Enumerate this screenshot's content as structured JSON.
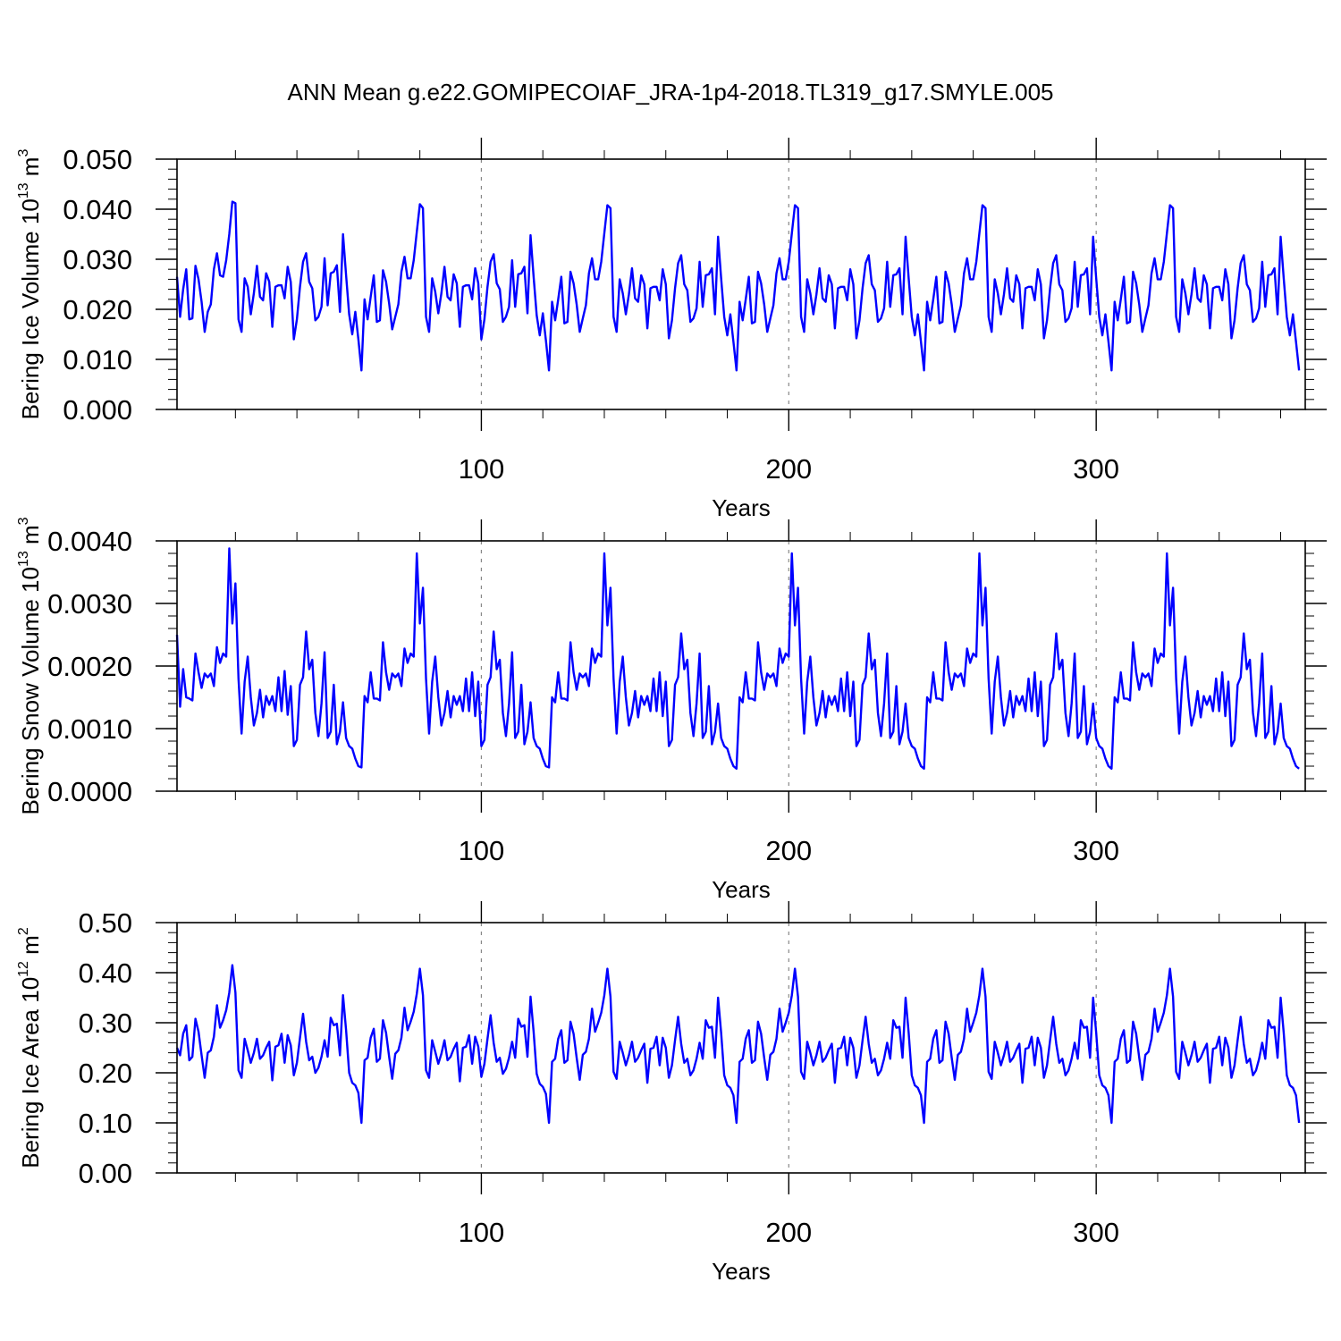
{
  "figure_title": "ANN Mean g.e22.GOMIPECOIAF_JRA-1p4-2018.TL319_g17.SMYLE.005",
  "colors": {
    "series": "#0000ff",
    "axes": "#000000",
    "grid": "#888888"
  },
  "chart_data": [
    {
      "type": "line",
      "name": "ice-volume",
      "xlabel": "Years",
      "ylabel": "Bering Ice Volume",
      "ylabel_unit_base": "10",
      "ylabel_unit_exp": "13",
      "ylabel_unit_tail": " m",
      "ylabel_unit_tail_exp": "3",
      "xlim": [
        1,
        368
      ],
      "ylim": [
        0,
        0.05
      ],
      "x_ticks": [
        100,
        200,
        300
      ],
      "x_tick_labels": [
        "100",
        "200",
        "300"
      ],
      "y_ticks": [
        0,
        0.01,
        0.02,
        0.03,
        0.04,
        0.05
      ],
      "y_tick_labels": [
        "0.000",
        "0.010",
        "0.020",
        "0.030",
        "0.040",
        "0.050"
      ],
      "grid": "dashed vertical at major x ticks",
      "x_start": 1,
      "values": [
        0.0265,
        0.0185,
        0.024,
        0.028,
        0.018,
        0.0182,
        0.0287,
        0.026,
        0.0215,
        0.0155,
        0.0195,
        0.021,
        0.028,
        0.0312,
        0.0268,
        0.0265,
        0.0298,
        0.035,
        0.0415,
        0.0412,
        0.018,
        0.0155,
        0.0262,
        0.0245,
        0.019,
        0.0232,
        0.0287,
        0.0225,
        0.0218,
        0.0272,
        0.0255,
        0.0165,
        0.0245,
        0.0248,
        0.0248,
        0.0222,
        0.0285,
        0.0255,
        0.014,
        0.018,
        0.0245,
        0.0295,
        0.0312,
        0.0255,
        0.0242,
        0.0178,
        0.0185,
        0.0205,
        0.0302,
        0.0208,
        0.0272,
        0.0275,
        0.0288,
        0.0195,
        0.035,
        0.0268,
        0.019,
        0.015,
        0.0195,
        0.014,
        0.0078,
        0.022,
        0.018,
        0.0225,
        0.0268,
        0.0175,
        0.0178,
        0.0278,
        0.0255,
        0.0212,
        0.016,
        0.0185,
        0.021,
        0.0275,
        0.0305,
        0.0262,
        0.0262,
        0.0298,
        0.0355,
        0.041,
        0.0402,
        0.0185,
        0.0155,
        0.0262,
        0.0235,
        0.0192,
        0.0232,
        0.0285,
        0.0225,
        0.0218,
        0.027,
        0.0252,
        0.0165,
        0.0245,
        0.0248,
        0.0248,
        0.022,
        0.0282,
        0.0252,
        0.014,
        0.018,
        0.0245,
        0.0295,
        0.031,
        0.0252,
        0.024,
        0.0175,
        0.0185,
        0.0205,
        0.0298,
        0.0205,
        0.027,
        0.0272,
        0.0285,
        0.0192,
        0.0348,
        0.0265,
        0.0188,
        0.0148,
        0.0192,
        0.0138,
        0.0078,
        0.0215,
        0.0178,
        0.022,
        0.0265,
        0.0172,
        0.0175,
        0.0275,
        0.0252,
        0.021,
        0.0155,
        0.0182,
        0.0208,
        0.0272,
        0.0302,
        0.026,
        0.026,
        0.0295,
        0.0352,
        0.0408,
        0.0402,
        0.0185,
        0.0155,
        0.026,
        0.0232,
        0.019,
        0.023,
        0.0282,
        0.0222,
        0.0215,
        0.0268,
        0.025,
        0.0162,
        0.0242,
        0.0245,
        0.0245,
        0.0218,
        0.028,
        0.025,
        0.0142,
        0.0178,
        0.0242,
        0.0292,
        0.0308,
        0.025,
        0.0238,
        0.0175,
        0.0182,
        0.0202,
        0.0295,
        0.0205,
        0.0268,
        0.027,
        0.0282,
        0.019,
        0.0345,
        0.0262,
        0.0185,
        0.0148,
        0.019,
        0.0135,
        0.0078,
        0.0215,
        0.0178,
        0.022,
        0.0265,
        0.0172,
        0.0175,
        0.0275,
        0.0252,
        0.021,
        0.0155,
        0.0182,
        0.0208,
        0.0272,
        0.0302,
        0.026,
        0.026,
        0.0295,
        0.0352,
        0.0408,
        0.0402,
        0.0185,
        0.0155,
        0.026,
        0.0232,
        0.019,
        0.023,
        0.0282,
        0.0222,
        0.0215,
        0.0268,
        0.025,
        0.0162,
        0.0242,
        0.0245,
        0.0245,
        0.0218,
        0.028,
        0.025,
        0.0142,
        0.0178,
        0.0242,
        0.0292,
        0.0308,
        0.025,
        0.0238,
        0.0175,
        0.0182,
        0.0202,
        0.0295,
        0.0205,
        0.0268,
        0.027,
        0.0282,
        0.019,
        0.0345,
        0.0262,
        0.0185,
        0.0148,
        0.019,
        0.0135,
        0.0078,
        0.0215,
        0.0178,
        0.022,
        0.0265,
        0.0172,
        0.0175,
        0.0275,
        0.0252,
        0.021,
        0.0155,
        0.0182,
        0.0208,
        0.0272,
        0.0302,
        0.026,
        0.026,
        0.0295,
        0.0352,
        0.0408,
        0.0402,
        0.0185,
        0.0155,
        0.026,
        0.0232,
        0.019,
        0.023,
        0.0282,
        0.0222,
        0.0215,
        0.0268,
        0.025,
        0.0162,
        0.0242,
        0.0245,
        0.0245,
        0.0218,
        0.028,
        0.025,
        0.0142,
        0.0178,
        0.0242,
        0.0292,
        0.0308,
        0.025,
        0.0238,
        0.0175,
        0.0182,
        0.0202,
        0.0295,
        0.0205,
        0.0268,
        0.027,
        0.0282,
        0.019,
        0.0345,
        0.0262,
        0.0185,
        0.0148,
        0.019,
        0.0135,
        0.0078,
        0.0215,
        0.0178,
        0.022,
        0.0265,
        0.0172,
        0.0175,
        0.0275,
        0.0252,
        0.021,
        0.0155,
        0.0182,
        0.0208,
        0.0272,
        0.0302,
        0.026,
        0.026,
        0.0295,
        0.0352,
        0.0408,
        0.0402,
        0.0185,
        0.0155,
        0.026,
        0.0232,
        0.019,
        0.023,
        0.0282,
        0.0222,
        0.0215,
        0.0268,
        0.025,
        0.0162,
        0.0242,
        0.0245,
        0.0245,
        0.0218,
        0.028,
        0.025,
        0.0142,
        0.0178,
        0.0242,
        0.0292,
        0.0308,
        0.025,
        0.0238,
        0.0175,
        0.0182,
        0.0202,
        0.0295,
        0.0205,
        0.0268,
        0.027,
        0.0282,
        0.019,
        0.0345,
        0.0262,
        0.0185,
        0.0148,
        0.019,
        0.0135,
        0.0078
      ]
    },
    {
      "type": "line",
      "name": "snow-volume",
      "xlabel": "Years",
      "ylabel": "Bering Snow Volume",
      "ylabel_unit_base": "10",
      "ylabel_unit_exp": "13",
      "ylabel_unit_tail": " m",
      "ylabel_unit_tail_exp": "3",
      "xlim": [
        1,
        368
      ],
      "ylim": [
        0,
        0.004
      ],
      "x_ticks": [
        100,
        200,
        300
      ],
      "x_tick_labels": [
        "100",
        "200",
        "300"
      ],
      "y_ticks": [
        0,
        0.001,
        0.002,
        0.003,
        0.004
      ],
      "y_tick_labels": [
        "0.0000",
        "0.0010",
        "0.0020",
        "0.0030",
        "0.0040"
      ],
      "grid": "dashed vertical at major x ticks",
      "x_start": 1,
      "values": [
        0.0025,
        0.00135,
        0.00195,
        0.0015,
        0.00148,
        0.00145,
        0.0022,
        0.0019,
        0.00165,
        0.00188,
        0.00182,
        0.00188,
        0.00168,
        0.0023,
        0.00205,
        0.0022,
        0.00215,
        0.00388,
        0.00268,
        0.00332,
        0.0018,
        0.00092,
        0.00175,
        0.00215,
        0.0015,
        0.00105,
        0.00125,
        0.00162,
        0.00118,
        0.00152,
        0.00138,
        0.00152,
        0.00128,
        0.00182,
        0.00128,
        0.00192,
        0.00122,
        0.00168,
        0.00072,
        0.00082,
        0.0017,
        0.00182,
        0.00255,
        0.00195,
        0.0021,
        0.00125,
        0.00088,
        0.0014,
        0.00222,
        0.00085,
        0.00095,
        0.0017,
        0.00075,
        0.00095,
        0.00142,
        0.00085,
        0.00072,
        0.00068,
        0.00052,
        0.0004,
        0.00038,
        0.00152,
        0.00142,
        0.0019,
        0.00148,
        0.00148,
        0.00145,
        0.00238,
        0.0019,
        0.00162,
        0.00188,
        0.00182,
        0.00188,
        0.00168,
        0.00228,
        0.00205,
        0.0022,
        0.00215,
        0.0038,
        0.00268,
        0.00325,
        0.0018,
        0.00092,
        0.00175,
        0.00215,
        0.0015,
        0.00105,
        0.00125,
        0.0016,
        0.00118,
        0.00152,
        0.00138,
        0.00152,
        0.00128,
        0.0018,
        0.00128,
        0.0019,
        0.0012,
        0.00175,
        0.00072,
        0.00082,
        0.0017,
        0.00182,
        0.00255,
        0.00195,
        0.0021,
        0.00125,
        0.00088,
        0.0014,
        0.00222,
        0.00085,
        0.00095,
        0.0017,
        0.00075,
        0.00095,
        0.00142,
        0.00085,
        0.00072,
        0.00068,
        0.00052,
        0.0004,
        0.00038,
        0.0015,
        0.00142,
        0.0019,
        0.00148,
        0.00148,
        0.00145,
        0.00238,
        0.0019,
        0.00162,
        0.00188,
        0.00182,
        0.00188,
        0.00168,
        0.00228,
        0.00205,
        0.0022,
        0.00215,
        0.0038,
        0.00265,
        0.00325,
        0.0018,
        0.00092,
        0.00175,
        0.00215,
        0.0015,
        0.00105,
        0.00125,
        0.0016,
        0.00118,
        0.00152,
        0.00138,
        0.00152,
        0.00128,
        0.0018,
        0.00128,
        0.0019,
        0.0012,
        0.00175,
        0.00072,
        0.00082,
        0.0017,
        0.00182,
        0.00252,
        0.00195,
        0.0021,
        0.00125,
        0.00088,
        0.0014,
        0.0022,
        0.00085,
        0.00095,
        0.00168,
        0.00075,
        0.00095,
        0.0014,
        0.00085,
        0.00072,
        0.00068,
        0.00052,
        0.0004,
        0.00036,
        0.0015,
        0.00142,
        0.0019,
        0.00148,
        0.00148,
        0.00145,
        0.00238,
        0.0019,
        0.00162,
        0.00188,
        0.00182,
        0.00188,
        0.00168,
        0.00228,
        0.00205,
        0.0022,
        0.00215,
        0.0038,
        0.00265,
        0.00325,
        0.0018,
        0.00092,
        0.00175,
        0.00215,
        0.0015,
        0.00105,
        0.00125,
        0.0016,
        0.00118,
        0.00152,
        0.00138,
        0.00152,
        0.00128,
        0.0018,
        0.00128,
        0.0019,
        0.0012,
        0.00175,
        0.00072,
        0.00082,
        0.0017,
        0.00182,
        0.00252,
        0.00195,
        0.0021,
        0.00125,
        0.00088,
        0.0014,
        0.0022,
        0.00085,
        0.00095,
        0.00168,
        0.00075,
        0.00095,
        0.0014,
        0.00085,
        0.00072,
        0.00068,
        0.00052,
        0.0004,
        0.00036,
        0.0015,
        0.00142,
        0.0019,
        0.00148,
        0.00148,
        0.00145,
        0.00238,
        0.0019,
        0.00162,
        0.00188,
        0.00182,
        0.00188,
        0.00168,
        0.00228,
        0.00205,
        0.0022,
        0.00215,
        0.0038,
        0.00265,
        0.00325,
        0.0018,
        0.00092,
        0.00175,
        0.00215,
        0.0015,
        0.00105,
        0.00125,
        0.0016,
        0.00118,
        0.00152,
        0.00138,
        0.00152,
        0.00128,
        0.0018,
        0.00128,
        0.0019,
        0.0012,
        0.00175,
        0.00072,
        0.00082,
        0.0017,
        0.00182,
        0.00252,
        0.00195,
        0.0021,
        0.00125,
        0.00088,
        0.0014,
        0.0022,
        0.00085,
        0.00095,
        0.00168,
        0.00075,
        0.00095,
        0.0014,
        0.00085,
        0.00072,
        0.00068,
        0.00052,
        0.0004,
        0.00036,
        0.0015,
        0.00142,
        0.0019,
        0.00148,
        0.00148,
        0.00145,
        0.00238,
        0.0019,
        0.00162,
        0.00188,
        0.00182,
        0.00188,
        0.00168,
        0.00228,
        0.00205,
        0.0022,
        0.00215,
        0.0038,
        0.00265,
        0.00325,
        0.0018,
        0.00092,
        0.00175,
        0.00215,
        0.0015,
        0.00105,
        0.00125,
        0.0016,
        0.00118,
        0.00152,
        0.00138,
        0.00152,
        0.00128,
        0.0018,
        0.00128,
        0.0019,
        0.0012,
        0.00175,
        0.00072,
        0.00082,
        0.0017,
        0.00182,
        0.00252,
        0.00195,
        0.0021,
        0.00125,
        0.00088,
        0.0014,
        0.0022,
        0.00085,
        0.00095,
        0.00168,
        0.00075,
        0.00095,
        0.0014,
        0.00085,
        0.00072,
        0.00068,
        0.00052,
        0.0004,
        0.00036
      ]
    },
    {
      "type": "line",
      "name": "ice-area",
      "xlabel": "Years",
      "ylabel": "Bering Ice Area",
      "ylabel_unit_base": "10",
      "ylabel_unit_exp": "12",
      "ylabel_unit_tail": " m",
      "ylabel_unit_tail_exp": "2",
      "xlim": [
        1,
        368
      ],
      "ylim": [
        0,
        0.5
      ],
      "x_ticks": [
        100,
        200,
        300
      ],
      "x_tick_labels": [
        "100",
        "200",
        "300"
      ],
      "y_ticks": [
        0,
        0.1,
        0.2,
        0.3,
        0.4,
        0.5
      ],
      "y_tick_labels": [
        "0.00",
        "0.10",
        "0.20",
        "0.30",
        "0.40",
        "0.50"
      ],
      "grid": "dashed vertical at major x ticks",
      "x_start": 1,
      "values": [
        0.25,
        0.235,
        0.278,
        0.295,
        0.225,
        0.232,
        0.308,
        0.282,
        0.235,
        0.19,
        0.24,
        0.245,
        0.272,
        0.335,
        0.29,
        0.305,
        0.325,
        0.36,
        0.415,
        0.36,
        0.205,
        0.19,
        0.268,
        0.245,
        0.22,
        0.24,
        0.268,
        0.228,
        0.235,
        0.25,
        0.262,
        0.185,
        0.252,
        0.255,
        0.278,
        0.22,
        0.275,
        0.255,
        0.195,
        0.22,
        0.27,
        0.318,
        0.262,
        0.225,
        0.232,
        0.2,
        0.21,
        0.232,
        0.265,
        0.232,
        0.31,
        0.295,
        0.298,
        0.235,
        0.355,
        0.285,
        0.2,
        0.18,
        0.175,
        0.16,
        0.1,
        0.225,
        0.23,
        0.27,
        0.288,
        0.222,
        0.228,
        0.305,
        0.28,
        0.232,
        0.188,
        0.238,
        0.245,
        0.27,
        0.33,
        0.285,
        0.302,
        0.322,
        0.358,
        0.408,
        0.355,
        0.205,
        0.19,
        0.265,
        0.242,
        0.218,
        0.238,
        0.265,
        0.225,
        0.232,
        0.248,
        0.26,
        0.183,
        0.25,
        0.252,
        0.275,
        0.218,
        0.272,
        0.252,
        0.192,
        0.218,
        0.268,
        0.315,
        0.26,
        0.222,
        0.23,
        0.198,
        0.208,
        0.23,
        0.262,
        0.23,
        0.308,
        0.292,
        0.295,
        0.232,
        0.352,
        0.282,
        0.198,
        0.178,
        0.172,
        0.158,
        0.1,
        0.222,
        0.228,
        0.268,
        0.285,
        0.22,
        0.225,
        0.302,
        0.278,
        0.23,
        0.186,
        0.236,
        0.242,
        0.268,
        0.328,
        0.282,
        0.3,
        0.32,
        0.355,
        0.408,
        0.352,
        0.202,
        0.188,
        0.262,
        0.24,
        0.215,
        0.235,
        0.262,
        0.222,
        0.23,
        0.245,
        0.258,
        0.18,
        0.248,
        0.25,
        0.272,
        0.215,
        0.27,
        0.25,
        0.19,
        0.215,
        0.265,
        0.312,
        0.258,
        0.22,
        0.228,
        0.195,
        0.205,
        0.228,
        0.26,
        0.228,
        0.305,
        0.29,
        0.292,
        0.23,
        0.35,
        0.28,
        0.195,
        0.175,
        0.17,
        0.155,
        0.1,
        0.222,
        0.228,
        0.268,
        0.285,
        0.22,
        0.225,
        0.302,
        0.278,
        0.23,
        0.186,
        0.236,
        0.242,
        0.268,
        0.328,
        0.282,
        0.3,
        0.32,
        0.355,
        0.408,
        0.352,
        0.202,
        0.188,
        0.262,
        0.24,
        0.215,
        0.235,
        0.262,
        0.222,
        0.23,
        0.245,
        0.258,
        0.18,
        0.248,
        0.25,
        0.272,
        0.215,
        0.27,
        0.25,
        0.19,
        0.215,
        0.265,
        0.312,
        0.258,
        0.22,
        0.228,
        0.195,
        0.205,
        0.228,
        0.26,
        0.228,
        0.305,
        0.29,
        0.292,
        0.23,
        0.35,
        0.28,
        0.195,
        0.175,
        0.17,
        0.155,
        0.1,
        0.222,
        0.228,
        0.268,
        0.285,
        0.22,
        0.225,
        0.302,
        0.278,
        0.23,
        0.186,
        0.236,
        0.242,
        0.268,
        0.328,
        0.282,
        0.3,
        0.32,
        0.355,
        0.408,
        0.352,
        0.202,
        0.188,
        0.262,
        0.24,
        0.215,
        0.235,
        0.262,
        0.222,
        0.23,
        0.245,
        0.258,
        0.18,
        0.248,
        0.25,
        0.272,
        0.215,
        0.27,
        0.25,
        0.19,
        0.215,
        0.265,
        0.312,
        0.258,
        0.22,
        0.228,
        0.195,
        0.205,
        0.228,
        0.26,
        0.228,
        0.305,
        0.29,
        0.292,
        0.23,
        0.35,
        0.28,
        0.195,
        0.175,
        0.17,
        0.155,
        0.1,
        0.222,
        0.228,
        0.268,
        0.285,
        0.22,
        0.225,
        0.302,
        0.278,
        0.23,
        0.186,
        0.236,
        0.242,
        0.268,
        0.328,
        0.282,
        0.3,
        0.32,
        0.355,
        0.408,
        0.352,
        0.202,
        0.188,
        0.262,
        0.24,
        0.215,
        0.235,
        0.262,
        0.222,
        0.23,
        0.245,
        0.258,
        0.18,
        0.248,
        0.25,
        0.272,
        0.215,
        0.27,
        0.25,
        0.19,
        0.215,
        0.265,
        0.312,
        0.258,
        0.22,
        0.228,
        0.195,
        0.205,
        0.228,
        0.26,
        0.228,
        0.305,
        0.29,
        0.292,
        0.23,
        0.35,
        0.28,
        0.195,
        0.175,
        0.17,
        0.155,
        0.1
      ]
    }
  ]
}
